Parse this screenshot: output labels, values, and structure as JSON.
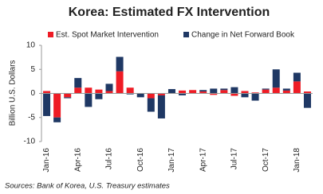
{
  "chart_data": {
    "type": "bar",
    "stacked": true,
    "title": "Korea: Estimated FX Intervention",
    "y_label": "Billion U.S. Dollars",
    "source": "Sources: Bank of Korea, U.S. Treasury estimates",
    "categories": [
      "Jan-16",
      null,
      null,
      "Apr-16",
      null,
      null,
      "Jul-16",
      null,
      null,
      "Oct-16",
      null,
      null,
      "Jan-17",
      null,
      null,
      "Apr-17",
      null,
      null,
      "Jul-17",
      null,
      null,
      "Oct-17",
      null,
      null,
      "Jan-18",
      null
    ],
    "series": [
      {
        "name": "Est. Spot Market Intervention",
        "color": "#ee1c25",
        "values": [
          0.5,
          -5,
          -0.8,
          1.2,
          1.2,
          0.8,
          0.5,
          4.6,
          1.2,
          0,
          -1,
          -0.4,
          0,
          0.6,
          0.7,
          0.4,
          -0.3,
          0.7,
          -0.5,
          0.5,
          0.2,
          0.8,
          1.2,
          0.6,
          2.5,
          0.4
        ]
      },
      {
        "name": "Change in Net Forward Book",
        "color": "#1f3864",
        "values": [
          -4.7,
          -1,
          -0.2,
          2,
          -2.8,
          -1.2,
          1.5,
          3,
          -0.2,
          -0.8,
          -2.8,
          -4.8,
          0.9,
          -0.4,
          0,
          0.3,
          1,
          0.3,
          1.3,
          -0.8,
          -1.5,
          0.2,
          3.8,
          0.4,
          1.8,
          -3
        ]
      }
    ],
    "ylim": [
      -10,
      10
    ],
    "yticks": [
      10,
      5,
      0,
      -5,
      -10
    ],
    "grid": false,
    "legend": "top"
  }
}
